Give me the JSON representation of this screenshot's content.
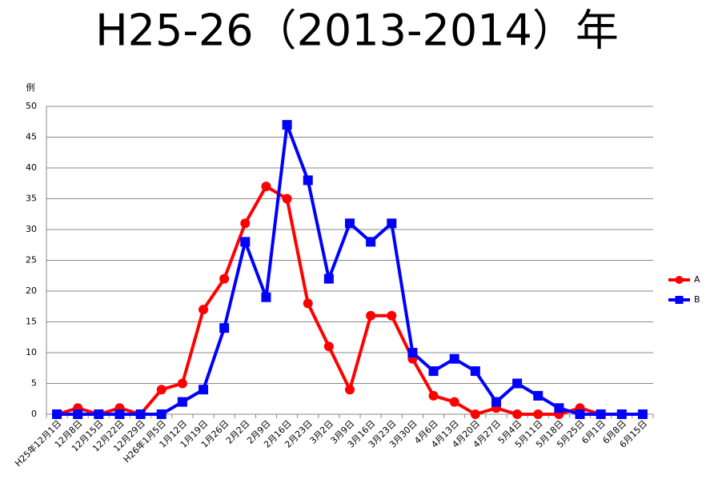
{
  "chart_data": {
    "type": "line",
    "title": "H25-26（2013-2014）年",
    "y_label": "例",
    "categories": [
      "H25年12月1日",
      "12月8日",
      "12月15日",
      "12月22日",
      "12月29日",
      "H26年1月5日",
      "1月12日",
      "1月19日",
      "1月26日",
      "2月2日",
      "2月9日",
      "2月16日",
      "2月23日",
      "3月2日",
      "3月9日",
      "3月16日",
      "3月23日",
      "3月30日",
      "4月6日",
      "4月13日",
      "4月20日",
      "4月27日",
      "5月4日",
      "5月11日",
      "5月18日",
      "5月25日",
      "6月1日",
      "6月8日",
      "6月15日"
    ],
    "series": [
      {
        "name": "A",
        "color": "#ff0000",
        "marker": "circle",
        "values": [
          0,
          1,
          0,
          1,
          0,
          4,
          5,
          17,
          22,
          31,
          37,
          35,
          18,
          11,
          4,
          16,
          16,
          9,
          3,
          2,
          0,
          1,
          0,
          0,
          0,
          1,
          0,
          0,
          0
        ]
      },
      {
        "name": "B",
        "color": "#0000ff",
        "marker": "square",
        "values": [
          0,
          0,
          0,
          0,
          0,
          0,
          2,
          4,
          14,
          28,
          19,
          47,
          38,
          22,
          31,
          28,
          31,
          10,
          7,
          9,
          7,
          2,
          5,
          3,
          1,
          0,
          0,
          0,
          0
        ]
      }
    ],
    "ylim": [
      0,
      50
    ],
    "yticks": [
      0,
      5,
      10,
      15,
      20,
      25,
      30,
      35,
      40,
      45,
      50
    ],
    "grid": true,
    "legend": "right"
  }
}
